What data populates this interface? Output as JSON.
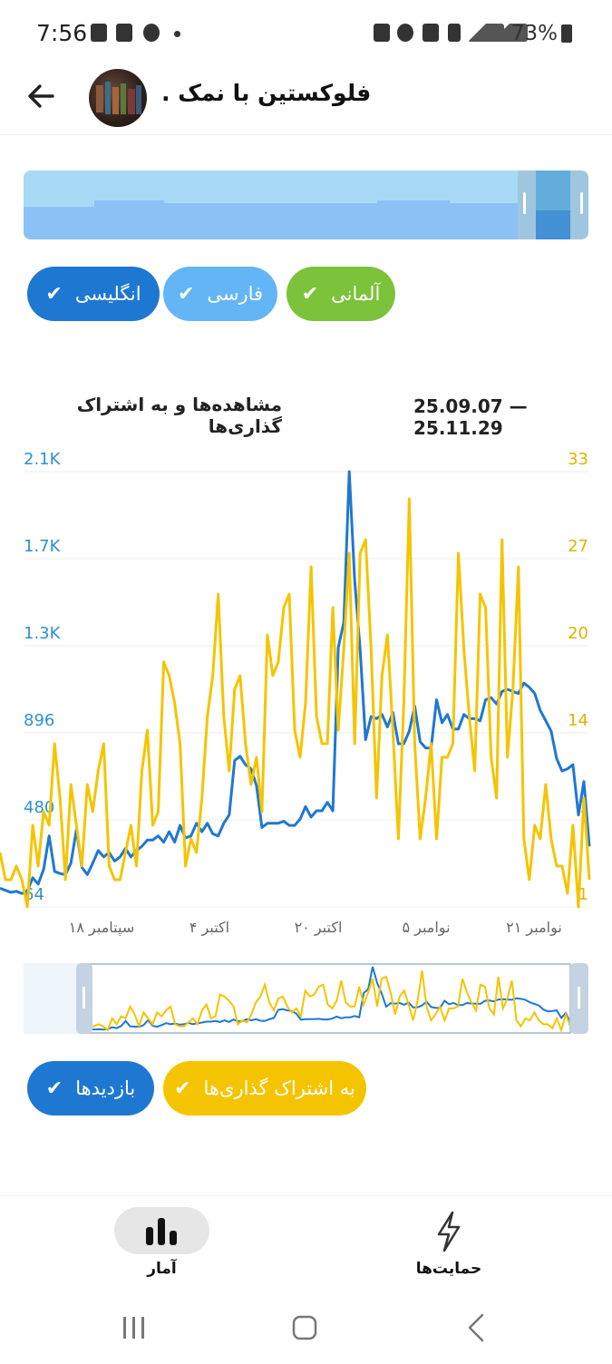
{
  "status_bar": {
    "time": "7:56",
    "battery": "73%"
  },
  "header": {
    "title": "فلوکستین با نمک ."
  },
  "language_filters": [
    {
      "label": "انگلیسی",
      "color": "#1e88e5"
    },
    {
      "label": "فارسی",
      "color": "#64b5f6"
    },
    {
      "label": "آلمانی",
      "color": "#7cc23a"
    }
  ],
  "chart_header": {
    "title": "مشاهده‌ها و به اشتراک گذاری‌ها",
    "date_range": "25.09.07 — 25.11.29"
  },
  "chart_data": {
    "type": "line",
    "title": "مشاهده‌ها و به اشتراک گذاری‌ها",
    "left_axis_ticks": [
      "2.1K",
      "1.7K",
      "1.3K",
      "896",
      "480",
      "64"
    ],
    "right_axis_ticks": [
      "33",
      "27",
      "20",
      "14",
      "7",
      "1"
    ],
    "x_ticks": [
      "سپتامبر ۱۸",
      "اکتبر ۴",
      "اکتبر ۲۰",
      "نوامبر ۵",
      "نوامبر ۲۱"
    ],
    "series": [
      {
        "name": "بازدیدها",
        "axis": "left",
        "color": "#1e78d2",
        "values": [
          110,
          100,
          90,
          95,
          85,
          95,
          160,
          130,
          200,
          360,
          190,
          180,
          175,
          230,
          390,
          210,
          175,
          230,
          290,
          260,
          280,
          240,
          260,
          300,
          260,
          290,
          310,
          340,
          340,
          360,
          330,
          380,
          330,
          410,
          350,
          360,
          420,
          380,
          420,
          370,
          360,
          420,
          460,
          720,
          740,
          700,
          680,
          600,
          400,
          420,
          420,
          420,
          430,
          410,
          410,
          440,
          500,
          450,
          480,
          480,
          520,
          480,
          1260,
          1380,
          2100,
          1580,
          1250,
          820,
          930,
          920,
          940,
          880,
          950,
          800,
          800,
          860,
          980,
          810,
          780,
          780,
          1010,
          900,
          940,
          870,
          870,
          940,
          920,
          920,
          910,
          1010,
          1020,
          990,
          1050,
          1060,
          1050,
          1040,
          1090,
          1070,
          1040,
          960,
          910,
          860,
          730,
          670,
          680,
          700,
          460,
          620,
          310
        ]
      },
      {
        "name": "به اشتراک گذاری‌ها",
        "axis": "right",
        "color": "#f5c400",
        "values": [
          5,
          3,
          3,
          4,
          3,
          1,
          7,
          4,
          8,
          7,
          13,
          9,
          3,
          10,
          7,
          4,
          10,
          8,
          11,
          13,
          4,
          3,
          3,
          5,
          7,
          4,
          11,
          14,
          7,
          8,
          19,
          18,
          16,
          13,
          4,
          6,
          5,
          9,
          15,
          18,
          24,
          15,
          11,
          17,
          18,
          13,
          10,
          12,
          8,
          21,
          18,
          19,
          23,
          24,
          14,
          12,
          16,
          26,
          15,
          13,
          13,
          23,
          14,
          20,
          27,
          13,
          27,
          28,
          20,
          9,
          18,
          21,
          14,
          6,
          16,
          31,
          13,
          6,
          9,
          13,
          6,
          12,
          12,
          13,
          27,
          20,
          15,
          11,
          24,
          23,
          12,
          9,
          28,
          12,
          17,
          26,
          6,
          3,
          7,
          6,
          10,
          6,
          4,
          4,
          2,
          7,
          1,
          9,
          3
        ]
      }
    ],
    "ylim_left": [
      64,
      2100
    ],
    "ylim_right": [
      1,
      33
    ],
    "grid": true
  },
  "series_filters": [
    {
      "label": "به اشتراک گذاری‌ها",
      "color": "#f5c400"
    },
    {
      "label": "بازدیدها",
      "color": "#1e88e5"
    }
  ],
  "bottom_nav": {
    "stats_label": "آمار",
    "support_label": "حمایت‌ها"
  }
}
